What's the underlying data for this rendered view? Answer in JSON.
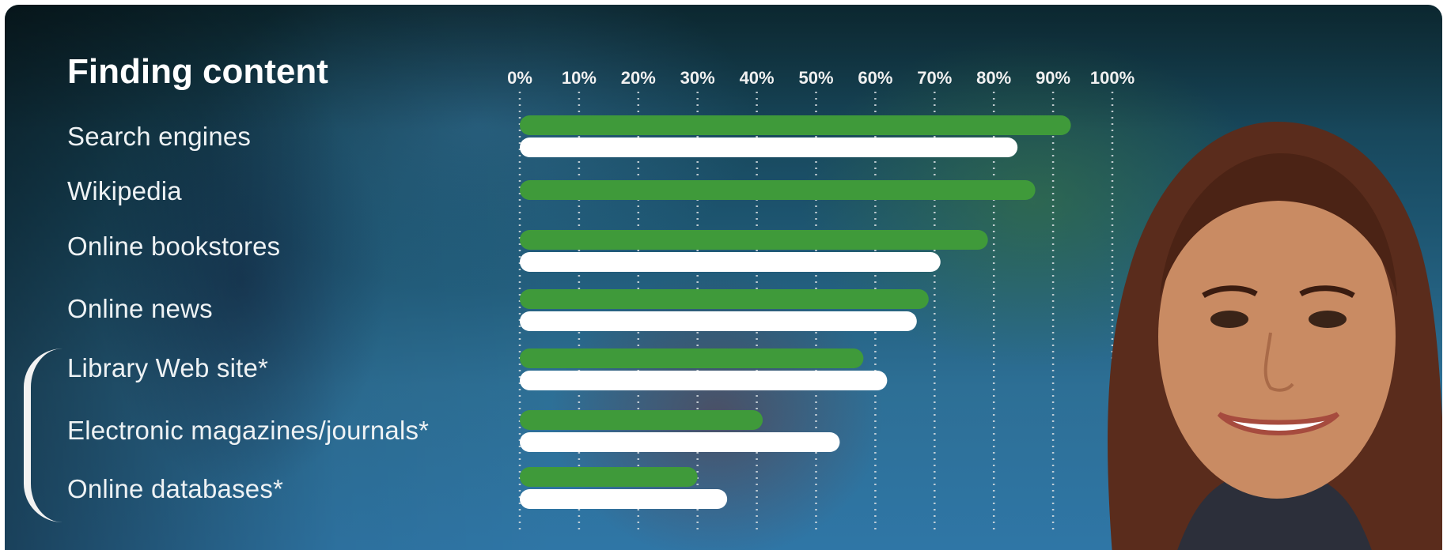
{
  "chart_data": {
    "type": "bar",
    "title": "Finding content",
    "categories": [
      "Search engines",
      "Wikipedia",
      "Online bookstores",
      "Online news",
      "Library Web site*",
      "Electronic magazines/journals*",
      "Online databases*"
    ],
    "series": [
      {
        "values": [
          93,
          87,
          79,
          69,
          58,
          41,
          30
        ],
        "color": "#3f9a3a"
      },
      {
        "values": [
          84,
          null,
          71,
          67,
          62,
          54,
          35
        ],
        "color": "#ffffff"
      }
    ],
    "x_ticks": [
      "0%",
      "10%",
      "20%",
      "30%",
      "40%",
      "50%",
      "60%",
      "70%",
      "80%",
      "90%",
      "100%"
    ],
    "xlim": [
      0,
      100
    ],
    "orientation": "horizontal",
    "grid": "vertical dotted lines at each 10%",
    "legend": "none"
  },
  "photo": {
    "subject": "smiling student"
  }
}
